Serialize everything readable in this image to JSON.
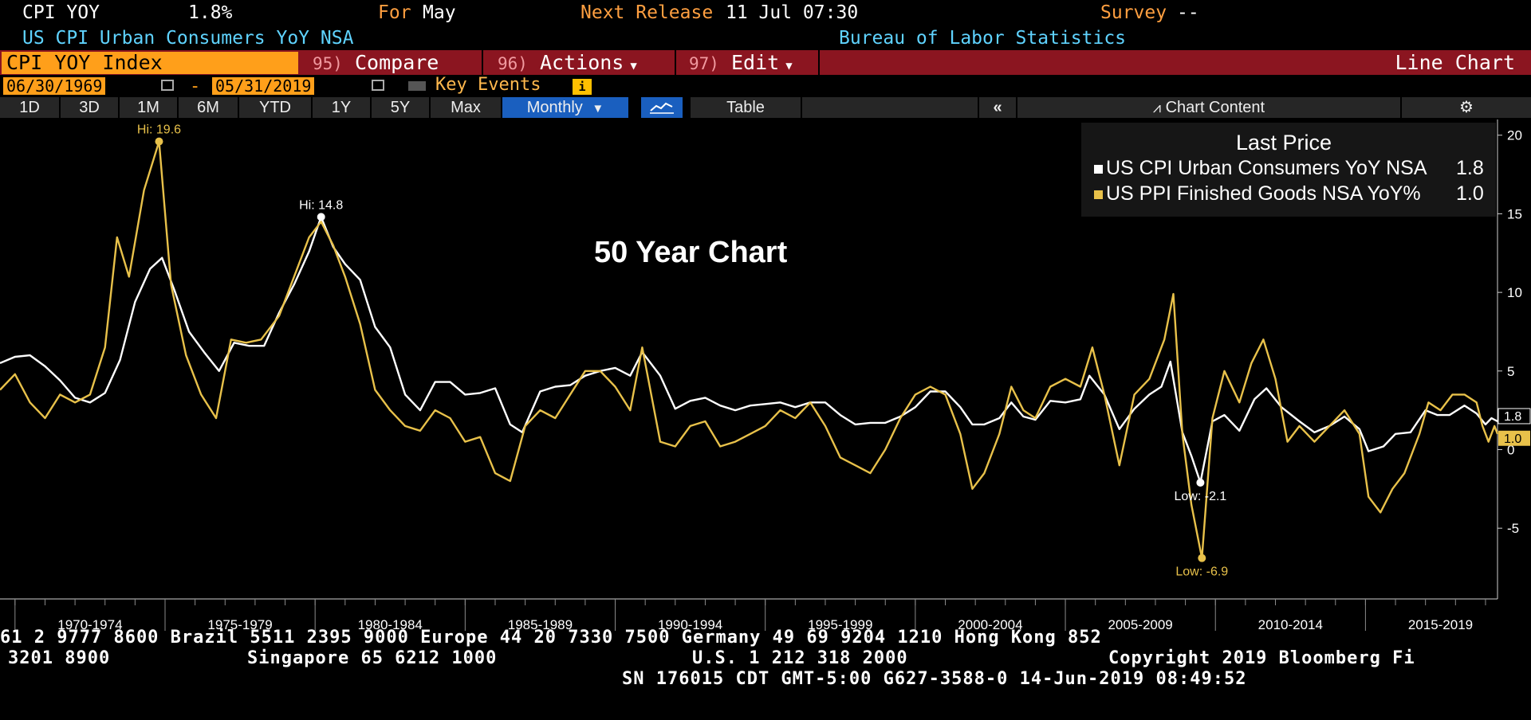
{
  "header": {
    "ticker": "CPI YOY",
    "value": "1.8%",
    "for_label": "For",
    "for_value": "May",
    "next_release_label": "Next Release",
    "next_release_value": "11 Jul 07:30",
    "survey_label": "Survey",
    "survey_value": "--",
    "description": "US CPI Urban Consumers YoY NSA",
    "source": "Bureau of Labor Statistics"
  },
  "command_bar": {
    "security": "CPI YOY Index",
    "compare_num": "95)",
    "compare_label": "Compare",
    "actions_num": "96)",
    "actions_label": "Actions",
    "edit_num": "97)",
    "edit_label": "Edit",
    "chart_type": "Line Chart"
  },
  "date_range": {
    "start": "06/30/1969",
    "separator": "-",
    "end": "05/31/2019",
    "key_events": "Key Events",
    "info": "i"
  },
  "toolbar": {
    "periods": [
      "1D",
      "3D",
      "1M",
      "6M",
      "YTD",
      "1Y",
      "5Y",
      "Max"
    ],
    "frequency": "Monthly",
    "table": "Table",
    "collapse": "«",
    "chart_content": "Chart Content"
  },
  "colors": {
    "cpi": "#ffffff",
    "ppi": "#e8c14a",
    "background": "#000000",
    "command_bar": "#8b1520",
    "highlight": "#ff9f1a"
  },
  "chart_data": {
    "type": "line",
    "annotation_title": "50 Year Chart",
    "legend_title": "Last Price",
    "legend": "top-right",
    "grid": false,
    "x_labels": [
      "1970-1974",
      "1975-1979",
      "1980-1984",
      "1985-1989",
      "1990-1994",
      "1995-1999",
      "2000-2004",
      "2005-2009",
      "2010-2014",
      "2015-2019"
    ],
    "xlim": [
      1969.5,
      2019.4
    ],
    "ylim": [
      -9.5,
      21
    ],
    "yticks": [
      -5,
      0,
      5,
      10,
      15,
      20
    ],
    "series": [
      {
        "name": "US CPI Urban Consumers YoY NSA",
        "last": "1.8",
        "color": "#ffffff",
        "points": [
          [
            1969.5,
            5.5
          ],
          [
            1970,
            5.9
          ],
          [
            1970.5,
            6.0
          ],
          [
            1971,
            5.3
          ],
          [
            1971.5,
            4.4
          ],
          [
            1972,
            3.3
          ],
          [
            1972.5,
            3.0
          ],
          [
            1973,
            3.6
          ],
          [
            1973.5,
            5.7
          ],
          [
            1974,
            9.4
          ],
          [
            1974.5,
            11.5
          ],
          [
            1974.9,
            12.2
          ],
          [
            1975.3,
            10.2
          ],
          [
            1975.8,
            7.5
          ],
          [
            1976.3,
            6.2
          ],
          [
            1976.8,
            5.0
          ],
          [
            1977.3,
            6.8
          ],
          [
            1977.8,
            6.6
          ],
          [
            1978.3,
            6.6
          ],
          [
            1978.8,
            8.7
          ],
          [
            1979.3,
            10.5
          ],
          [
            1979.8,
            12.6
          ],
          [
            1980.2,
            14.8
          ],
          [
            1980.6,
            12.9
          ],
          [
            1981,
            11.8
          ],
          [
            1981.5,
            10.8
          ],
          [
            1982,
            7.8
          ],
          [
            1982.5,
            6.5
          ],
          [
            1983,
            3.5
          ],
          [
            1983.5,
            2.5
          ],
          [
            1984,
            4.3
          ],
          [
            1984.5,
            4.3
          ],
          [
            1985,
            3.5
          ],
          [
            1985.5,
            3.6
          ],
          [
            1986,
            3.9
          ],
          [
            1986.5,
            1.6
          ],
          [
            1986.9,
            1.1
          ],
          [
            1987.5,
            3.7
          ],
          [
            1988,
            4.0
          ],
          [
            1988.5,
            4.1
          ],
          [
            1989,
            4.7
          ],
          [
            1989.5,
            5.0
          ],
          [
            1990,
            5.2
          ],
          [
            1990.5,
            4.7
          ],
          [
            1990.9,
            6.2
          ],
          [
            1991.5,
            4.7
          ],
          [
            1992,
            2.6
          ],
          [
            1992.5,
            3.1
          ],
          [
            1993,
            3.3
          ],
          [
            1993.5,
            2.8
          ],
          [
            1994,
            2.5
          ],
          [
            1994.5,
            2.8
          ],
          [
            1995,
            2.9
          ],
          [
            1995.5,
            3.0
          ],
          [
            1996,
            2.7
          ],
          [
            1996.5,
            3.0
          ],
          [
            1997,
            3.0
          ],
          [
            1997.5,
            2.2
          ],
          [
            1998,
            1.6
          ],
          [
            1998.5,
            1.7
          ],
          [
            1999,
            1.7
          ],
          [
            1999.5,
            2.1
          ],
          [
            2000,
            2.7
          ],
          [
            2000.5,
            3.7
          ],
          [
            2001,
            3.7
          ],
          [
            2001.5,
            2.7
          ],
          [
            2001.9,
            1.6
          ],
          [
            2002.3,
            1.6
          ],
          [
            2002.8,
            2.0
          ],
          [
            2003.2,
            3.0
          ],
          [
            2003.6,
            2.1
          ],
          [
            2004,
            1.9
          ],
          [
            2004.5,
            3.1
          ],
          [
            2005,
            3.0
          ],
          [
            2005.5,
            3.2
          ],
          [
            2005.8,
            4.7
          ],
          [
            2006.3,
            3.5
          ],
          [
            2006.8,
            1.3
          ],
          [
            2007.3,
            2.6
          ],
          [
            2007.8,
            3.5
          ],
          [
            2008.2,
            4.0
          ],
          [
            2008.5,
            5.6
          ],
          [
            2008.9,
            1.1
          ],
          [
            2009.2,
            -0.4
          ],
          [
            2009.5,
            -2.1
          ],
          [
            2009.9,
            1.8
          ],
          [
            2010.3,
            2.2
          ],
          [
            2010.8,
            1.2
          ],
          [
            2011.3,
            3.2
          ],
          [
            2011.7,
            3.9
          ],
          [
            2012.2,
            2.7
          ],
          [
            2012.8,
            1.8
          ],
          [
            2013.3,
            1.1
          ],
          [
            2013.8,
            1.5
          ],
          [
            2014.3,
            2.1
          ],
          [
            2014.8,
            1.3
          ],
          [
            2015.1,
            -0.1
          ],
          [
            2015.6,
            0.2
          ],
          [
            2016,
            1.0
          ],
          [
            2016.5,
            1.1
          ],
          [
            2017,
            2.5
          ],
          [
            2017.4,
            2.2
          ],
          [
            2017.8,
            2.2
          ],
          [
            2018.3,
            2.8
          ],
          [
            2018.7,
            2.3
          ],
          [
            2019,
            1.6
          ],
          [
            2019.2,
            2.0
          ],
          [
            2019.4,
            1.8
          ]
        ]
      },
      {
        "name": "US PPI Finished Goods NSA YoY%",
        "last": "1.0",
        "color": "#e8c14a",
        "points": [
          [
            1969.5,
            3.8
          ],
          [
            1970,
            4.8
          ],
          [
            1970.5,
            3.0
          ],
          [
            1971,
            2.0
          ],
          [
            1971.5,
            3.5
          ],
          [
            1972,
            3.0
          ],
          [
            1972.5,
            3.5
          ],
          [
            1973,
            6.5
          ],
          [
            1973.4,
            13.5
          ],
          [
            1973.8,
            11.0
          ],
          [
            1974.3,
            16.5
          ],
          [
            1974.8,
            19.6
          ],
          [
            1975.2,
            10.5
          ],
          [
            1975.7,
            6.0
          ],
          [
            1976.2,
            3.5
          ],
          [
            1976.7,
            2.0
          ],
          [
            1977.2,
            7.0
          ],
          [
            1977.7,
            6.8
          ],
          [
            1978.2,
            7.0
          ],
          [
            1978.8,
            8.5
          ],
          [
            1979.3,
            11.0
          ],
          [
            1979.8,
            13.5
          ],
          [
            1980.2,
            14.5
          ],
          [
            1980.6,
            13.0
          ],
          [
            1981,
            11.0
          ],
          [
            1981.5,
            8.0
          ],
          [
            1982,
            3.8
          ],
          [
            1982.5,
            2.5
          ],
          [
            1983,
            1.5
          ],
          [
            1983.5,
            1.2
          ],
          [
            1984,
            2.5
          ],
          [
            1984.5,
            2.0
          ],
          [
            1985,
            0.5
          ],
          [
            1985.5,
            0.8
          ],
          [
            1986,
            -1.5
          ],
          [
            1986.5,
            -2.0
          ],
          [
            1987,
            1.5
          ],
          [
            1987.5,
            2.5
          ],
          [
            1988,
            2.0
          ],
          [
            1988.5,
            3.5
          ],
          [
            1989,
            5.0
          ],
          [
            1989.5,
            5.0
          ],
          [
            1990,
            4.0
          ],
          [
            1990.5,
            2.5
          ],
          [
            1990.9,
            6.5
          ],
          [
            1991.5,
            0.5
          ],
          [
            1992,
            0.2
          ],
          [
            1992.5,
            1.5
          ],
          [
            1993,
            1.8
          ],
          [
            1993.5,
            0.2
          ],
          [
            1994,
            0.5
          ],
          [
            1994.5,
            1.0
          ],
          [
            1995,
            1.5
          ],
          [
            1995.5,
            2.5
          ],
          [
            1996,
            2.0
          ],
          [
            1996.5,
            3.0
          ],
          [
            1997,
            1.5
          ],
          [
            1997.5,
            -0.5
          ],
          [
            1998,
            -1.0
          ],
          [
            1998.5,
            -1.5
          ],
          [
            1999,
            0.0
          ],
          [
            1999.5,
            2.0
          ],
          [
            2000,
            3.5
          ],
          [
            2000.5,
            4.0
          ],
          [
            2001,
            3.5
          ],
          [
            2001.5,
            1.0
          ],
          [
            2001.9,
            -2.5
          ],
          [
            2002.3,
            -1.5
          ],
          [
            2002.8,
            1.0
          ],
          [
            2003.2,
            4.0
          ],
          [
            2003.6,
            2.5
          ],
          [
            2004,
            2.0
          ],
          [
            2004.5,
            4.0
          ],
          [
            2005,
            4.5
          ],
          [
            2005.5,
            4.0
          ],
          [
            2005.9,
            6.5
          ],
          [
            2006.3,
            3.5
          ],
          [
            2006.8,
            -1.0
          ],
          [
            2007.3,
            3.5
          ],
          [
            2007.8,
            4.5
          ],
          [
            2008.3,
            7.0
          ],
          [
            2008.6,
            9.9
          ],
          [
            2008.9,
            1.0
          ],
          [
            2009.2,
            -3.5
          ],
          [
            2009.55,
            -6.9
          ],
          [
            2009.9,
            2.0
          ],
          [
            2010.3,
            5.0
          ],
          [
            2010.8,
            3.0
          ],
          [
            2011.2,
            5.5
          ],
          [
            2011.6,
            7.0
          ],
          [
            2012,
            4.5
          ],
          [
            2012.4,
            0.5
          ],
          [
            2012.8,
            1.5
          ],
          [
            2013.3,
            0.5
          ],
          [
            2013.8,
            1.5
          ],
          [
            2014.3,
            2.5
          ],
          [
            2014.8,
            1.0
          ],
          [
            2015.1,
            -3.0
          ],
          [
            2015.5,
            -4.0
          ],
          [
            2015.9,
            -2.5
          ],
          [
            2016.3,
            -1.5
          ],
          [
            2016.8,
            1.0
          ],
          [
            2017.1,
            3.0
          ],
          [
            2017.5,
            2.5
          ],
          [
            2017.9,
            3.5
          ],
          [
            2018.3,
            3.5
          ],
          [
            2018.7,
            3.0
          ],
          [
            2018.9,
            1.5
          ],
          [
            2019.1,
            0.5
          ],
          [
            2019.3,
            1.5
          ],
          [
            2019.4,
            1.0
          ]
        ]
      }
    ],
    "annotations": {
      "cpi_high": "Hi: 14.8",
      "cpi_low": "Low: -2.1",
      "ppi_high": "Hi: 19.6",
      "ppi_low": "Low: -6.9"
    }
  },
  "footer": {
    "line1": "61 2 9777 8600 Brazil 5511 2395 9000 Europe 44 20 7330 7500 Germany 49 69 9204 1210 Hong Kong 852",
    "line2_left": "3201 8900",
    "line2_mid": "Singapore 65 6212 1000",
    "line2_us": "U.S. 1 212 318 2000",
    "line2_right": "Copyright 2019 Bloomberg Fi",
    "line3": "SN 176015 CDT  GMT-5:00 G627-3588-0 14-Jun-2019 08:49:52"
  }
}
